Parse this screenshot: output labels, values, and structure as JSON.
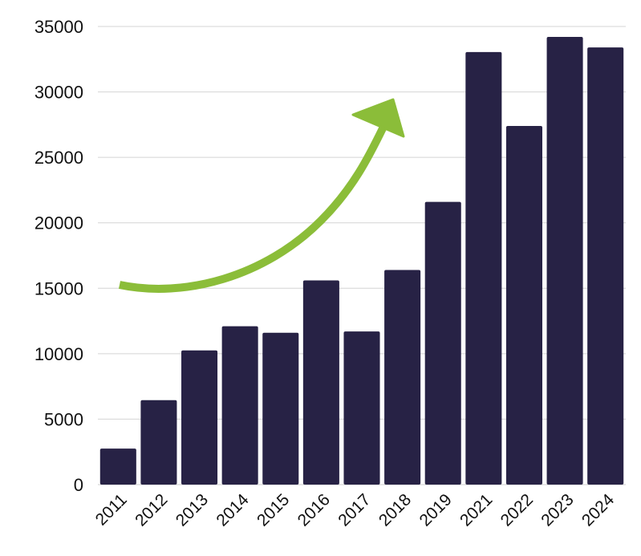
{
  "chart_data": {
    "type": "bar",
    "title": "",
    "xlabel": "",
    "ylabel": "",
    "categories": [
      "2011",
      "2012",
      "2013",
      "2014",
      "2015",
      "2016",
      "2017",
      "2018",
      "2019",
      "2021",
      "2022",
      "2023",
      "2024"
    ],
    "values": [
      2750,
      6450,
      10250,
      12100,
      11600,
      15600,
      11700,
      16400,
      21600,
      33050,
      27400,
      34200,
      33400
    ],
    "ylim": [
      0,
      35000
    ],
    "yticks": [
      "0",
      "5000",
      "10000",
      "15000",
      "20000",
      "25000",
      "30000",
      "35000"
    ],
    "grid": true,
    "bar_color": "#272245",
    "arrow_color": "#8bbd39",
    "annotation": "upward-trend-arrow"
  }
}
